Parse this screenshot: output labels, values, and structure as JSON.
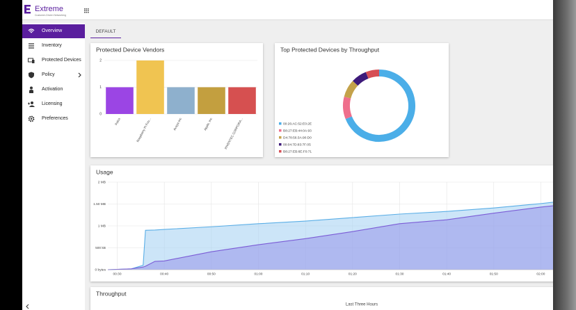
{
  "header": {
    "brand": "Extreme",
    "tagline": "Customer-Driven Networking"
  },
  "sidebar": {
    "items": [
      "Overview",
      "Inventory",
      "Protected Devices",
      "Policy",
      "Activation",
      "Licensing",
      "Preferences"
    ]
  },
  "tab": "DEFAULT",
  "chart_data": [
    {
      "type": "bar",
      "title": "Protected Device Vendors",
      "categories": [
        "Palco",
        "Raspberry Pi Fou...",
        "Avaya Inc",
        "Apple, Inc",
        "INVENTEC CORPORA..."
      ],
      "values": [
        1,
        2,
        1,
        1,
        1
      ],
      "colors": [
        "#9b45e4",
        "#f0c451",
        "#8eb0cd",
        "#c39f3f",
        "#d65050"
      ],
      "ylim": [
        0,
        2
      ],
      "yticks": [
        0,
        1,
        2
      ],
      "grid": true
    },
    {
      "type": "donut",
      "title": "Top Protected Devices by Throughput",
      "categories": [
        "00:26:AC:52:E0:2E",
        "B8:27:EB:44:0A:93",
        "D4:78:56:3A:90:D0",
        "00:04:7D:83:7F:05",
        "B8:27:EB:6E:F0:71"
      ],
      "values": [
        69,
        10,
        8,
        7,
        6
      ],
      "colors": [
        "#4baee8",
        "#ef6f8c",
        "#c4a24a",
        "#3d1a7a",
        "#d64f55"
      ]
    },
    {
      "type": "area",
      "title": "Usage",
      "x": [
        28,
        33,
        35.5,
        36,
        38,
        40,
        50,
        60,
        70,
        80,
        90,
        100,
        110,
        120,
        122.6
      ],
      "series": [
        {
          "color": "#5aaee6",
          "values": [
            0,
            20,
            100,
            900,
            905,
            920,
            980,
            1050,
            1110,
            1190,
            1270,
            1330,
            1410,
            1510,
            1540
          ]
        },
        {
          "color": "#7b5cd6",
          "values": [
            0,
            20,
            60,
            80,
            190,
            200,
            410,
            570,
            710,
            870,
            1050,
            1140,
            1290,
            1430,
            1460
          ]
        }
      ],
      "xlim": [
        28,
        122.6
      ],
      "xticks": [
        {
          "value": 30,
          "label": "00:30"
        },
        {
          "value": 40,
          "label": "00:40"
        },
        {
          "value": 50,
          "label": "00:50"
        },
        {
          "value": 60,
          "label": "01:00"
        },
        {
          "value": 70,
          "label": "01:10"
        },
        {
          "value": 80,
          "label": "01:20"
        },
        {
          "value": 90,
          "label": "01:30"
        },
        {
          "value": 100,
          "label": "01:40"
        },
        {
          "value": 110,
          "label": "01:50"
        },
        {
          "value": 120,
          "label": "02:00"
        }
      ],
      "ylim": [
        0,
        2000
      ],
      "yticks": [
        {
          "value": 0,
          "label": "0 bytes"
        },
        {
          "value": 500,
          "label": "500 kB"
        },
        {
          "value": 1000,
          "label": "1 MB"
        },
        {
          "value": 1500,
          "label": "1.50 MB"
        },
        {
          "value": 2000,
          "label": "2 MB"
        }
      ],
      "grid": true
    },
    {
      "type": "line",
      "title": "Throughput",
      "subtitle": "Last Three Hours"
    }
  ]
}
